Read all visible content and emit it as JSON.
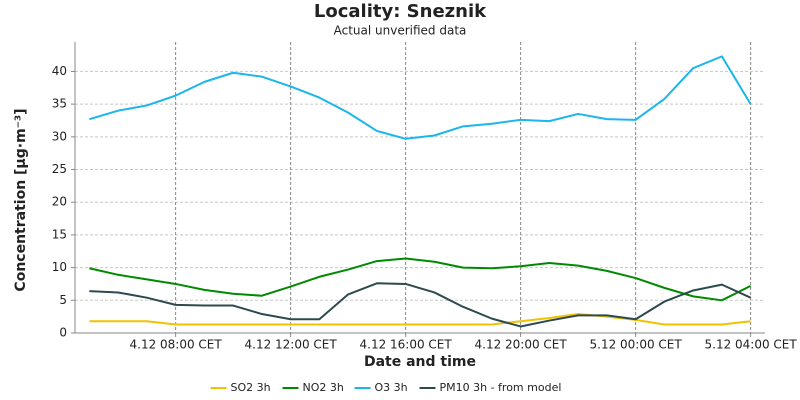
{
  "chart_data": {
    "type": "line",
    "title": "Locality: Sneznik",
    "subtitle": "Actual unverified data",
    "x_label": "Date and time",
    "y_label": "Concentration [µg·m⁻³]",
    "x": [
      "4.12 05:00 CET",
      "4.12 06:00 CET",
      "4.12 07:00 CET",
      "4.12 08:00 CET",
      "4.12 09:00 CET",
      "4.12 10:00 CET",
      "4.12 11:00 CET",
      "4.12 12:00 CET",
      "4.12 13:00 CET",
      "4.12 14:00 CET",
      "4.12 15:00 CET",
      "4.12 16:00 CET",
      "4.12 17:00 CET",
      "4.12 18:00 CET",
      "4.12 19:00 CET",
      "4.12 20:00 CET",
      "4.12 21:00 CET",
      "4.12 22:00 CET",
      "4.12 23:00 CET",
      "5.12 00:00 CET",
      "5.12 01:00 CET",
      "5.12 02:00 CET",
      "5.12 03:00 CET",
      "5.12 04:00 CET"
    ],
    "xlim": [
      "4.12 04:30 CET",
      "5.12 04:30 CET"
    ],
    "xticks": [
      "4.12 08:00 CET",
      "4.12 12:00 CET",
      "4.12 16:00 CET",
      "4.12 20:00 CET",
      "5.12 00:00 CET",
      "5.12 04:00 CET"
    ],
    "ylim": [
      0,
      44.5
    ],
    "yticks": [
      0,
      5,
      10,
      15,
      20,
      25,
      30,
      35,
      40
    ],
    "grid": true,
    "legend": "bottom",
    "series": [
      {
        "name": "SO2 3h",
        "color": "#f2c200",
        "values": [
          1.8,
          1.8,
          1.8,
          1.3,
          1.3,
          1.3,
          1.3,
          1.3,
          1.3,
          1.3,
          1.3,
          1.3,
          1.3,
          1.3,
          1.3,
          1.8,
          2.3,
          2.9,
          2.5,
          2.0,
          1.3,
          1.3,
          1.3,
          1.8
        ]
      },
      {
        "name": "NO2 3h",
        "color": "#008a00",
        "values": [
          9.9,
          8.9,
          8.2,
          7.5,
          6.6,
          6.0,
          5.7,
          7.1,
          8.6,
          9.7,
          11.0,
          11.4,
          10.9,
          10.0,
          9.9,
          10.2,
          10.7,
          10.3,
          9.5,
          8.4,
          6.9,
          5.6,
          5.0,
          7.2
        ]
      },
      {
        "name": "O3 3h",
        "color": "#1ab6ec",
        "values": [
          32.7,
          34.0,
          34.8,
          36.3,
          38.4,
          39.8,
          39.2,
          37.7,
          36.0,
          33.7,
          30.9,
          29.7,
          30.2,
          31.6,
          32.0,
          32.6,
          32.4,
          33.5,
          32.7,
          32.6,
          35.8,
          40.5,
          42.3,
          35.0
        ]
      },
      {
        "name": "PM10 3h - from model",
        "color": "#2d4a4f",
        "values": [
          6.4,
          6.2,
          5.4,
          4.3,
          4.2,
          4.2,
          2.9,
          2.1,
          2.1,
          5.9,
          7.6,
          7.5,
          6.2,
          4.0,
          2.2,
          1.0,
          1.9,
          2.7,
          2.7,
          2.1,
          4.8,
          6.5,
          7.4,
          5.4
        ]
      }
    ]
  }
}
